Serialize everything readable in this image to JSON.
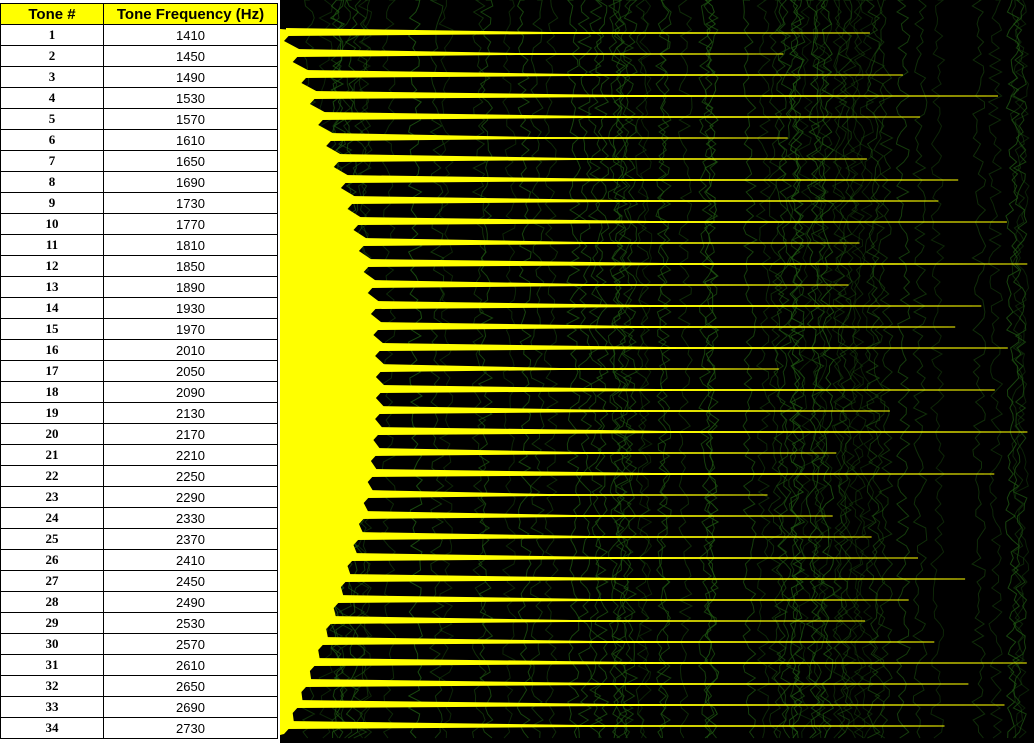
{
  "table": {
    "headers": [
      "Tone #",
      "Tone Frequency (Hz)"
    ],
    "rows": [
      {
        "tone": "1",
        "freq": "1410"
      },
      {
        "tone": "2",
        "freq": "1450"
      },
      {
        "tone": "3",
        "freq": "1490"
      },
      {
        "tone": "4",
        "freq": "1530"
      },
      {
        "tone": "5",
        "freq": "1570"
      },
      {
        "tone": "6",
        "freq": "1610"
      },
      {
        "tone": "7",
        "freq": "1650"
      },
      {
        "tone": "8",
        "freq": "1690"
      },
      {
        "tone": "9",
        "freq": "1730"
      },
      {
        "tone": "10",
        "freq": "1770"
      },
      {
        "tone": "11",
        "freq": "1810"
      },
      {
        "tone": "12",
        "freq": "1850"
      },
      {
        "tone": "13",
        "freq": "1890"
      },
      {
        "tone": "14",
        "freq": "1930"
      },
      {
        "tone": "15",
        "freq": "1970"
      },
      {
        "tone": "16",
        "freq": "2010"
      },
      {
        "tone": "17",
        "freq": "2050"
      },
      {
        "tone": "18",
        "freq": "2090"
      },
      {
        "tone": "19",
        "freq": "2130"
      },
      {
        "tone": "20",
        "freq": "2170"
      },
      {
        "tone": "21",
        "freq": "2210"
      },
      {
        "tone": "22",
        "freq": "2250"
      },
      {
        "tone": "23",
        "freq": "2290"
      },
      {
        "tone": "24",
        "freq": "2330"
      },
      {
        "tone": "25",
        "freq": "2370"
      },
      {
        "tone": "26",
        "freq": "2410"
      },
      {
        "tone": "27",
        "freq": "2450"
      },
      {
        "tone": "28",
        "freq": "2490"
      },
      {
        "tone": "29",
        "freq": "2530"
      },
      {
        "tone": "30",
        "freq": "2570"
      },
      {
        "tone": "31",
        "freq": "2610"
      },
      {
        "tone": "32",
        "freq": "2650"
      },
      {
        "tone": "33",
        "freq": "2690"
      },
      {
        "tone": "34",
        "freq": "2730"
      }
    ]
  },
  "colors": {
    "header_bg": "#ffff00",
    "plot_bg": "#000000",
    "tone_trace": "#ffff00",
    "background_trace": "#1f5a12"
  },
  "chart_data": {
    "type": "table",
    "title": "",
    "xlabel": "",
    "ylabel": "",
    "grid": false,
    "legend": "none",
    "columns": [
      "Tone #",
      "Tone Frequency (Hz)"
    ],
    "tone_numbers": [
      1,
      2,
      3,
      4,
      5,
      6,
      7,
      8,
      9,
      10,
      11,
      12,
      13,
      14,
      15,
      16,
      17,
      18,
      19,
      20,
      21,
      22,
      23,
      24,
      25,
      26,
      27,
      28,
      29,
      30,
      31,
      32,
      33,
      34
    ],
    "frequencies_hz": [
      1410,
      1450,
      1490,
      1530,
      1570,
      1610,
      1650,
      1690,
      1730,
      1770,
      1810,
      1850,
      1890,
      1930,
      1970,
      2010,
      2050,
      2090,
      2130,
      2170,
      2210,
      2250,
      2290,
      2330,
      2370,
      2410,
      2450,
      2490,
      2530,
      2570,
      2610,
      2650,
      2690,
      2730
    ],
    "frequency_step_hz": 40,
    "waterfall": {
      "type": "area",
      "description_series": "yellow tone traces, one per tone row",
      "relative_decay_length": [
        0.78,
        0.66,
        0.82,
        0.95,
        0.84,
        0.65,
        0.76,
        0.89,
        0.86,
        0.96,
        0.74,
        0.99,
        0.72,
        0.92,
        0.88,
        0.96,
        0.61,
        0.94,
        0.78,
        0.99,
        0.7,
        0.94,
        0.6,
        0.7,
        0.76,
        0.83,
        0.9,
        0.82,
        0.76,
        0.86,
        0.99,
        0.91,
        0.96,
        0.88
      ]
    }
  }
}
